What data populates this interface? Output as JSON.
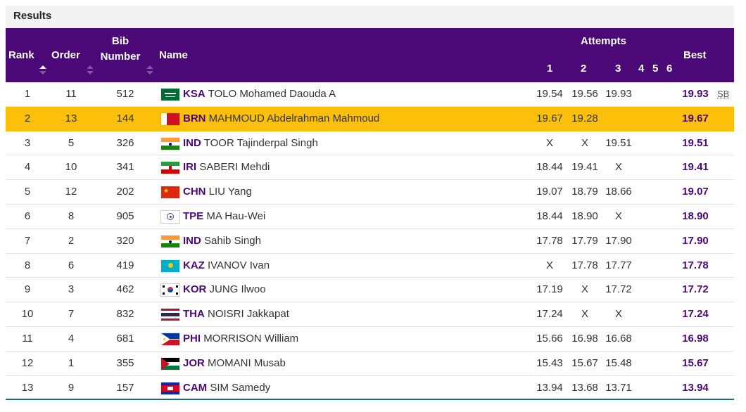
{
  "section_title": "Results",
  "header": {
    "rank": "Rank",
    "order": "Order",
    "bib_line1": "Bib",
    "bib_line2": "Number",
    "name": "Name",
    "attempts": "Attempts",
    "a1": "1",
    "a2": "2",
    "a3": "3",
    "a4": "4",
    "a5": "5",
    "a6": "6",
    "best": "Best"
  },
  "rows": [
    {
      "rank": "1",
      "order": "11",
      "bib": "512",
      "noc": "KSA",
      "name": "TOLO Mohamed Daouda A",
      "a1": "19.54",
      "a2": "19.56",
      "a3": "19.93",
      "best": "19.93",
      "note": "SB",
      "flag": "flag-ksa"
    },
    {
      "rank": "2",
      "order": "13",
      "bib": "144",
      "noc": "BRN",
      "name": "MAHMOUD Abdelrahman Mahmoud",
      "a1": "19.67",
      "a2": "19.28",
      "a3": "",
      "best": "19.67",
      "note": "",
      "flag": "flag-brn"
    },
    {
      "rank": "3",
      "order": "5",
      "bib": "326",
      "noc": "IND",
      "name": "TOOR Tajinderpal Singh",
      "a1": "X",
      "a2": "X",
      "a3": "19.51",
      "best": "19.51",
      "note": "",
      "flag": "flag-ind"
    },
    {
      "rank": "4",
      "order": "10",
      "bib": "341",
      "noc": "IRI",
      "name": "SABERI Mehdi",
      "a1": "18.44",
      "a2": "19.41",
      "a3": "X",
      "best": "19.41",
      "note": "",
      "flag": "flag-iri"
    },
    {
      "rank": "5",
      "order": "12",
      "bib": "202",
      "noc": "CHN",
      "name": "LIU Yang",
      "a1": "19.07",
      "a2": "18.79",
      "a3": "18.66",
      "best": "19.07",
      "note": "",
      "flag": "flag-chn"
    },
    {
      "rank": "6",
      "order": "8",
      "bib": "905",
      "noc": "TPE",
      "name": "MA Hau-Wei",
      "a1": "18.44",
      "a2": "18.90",
      "a3": "X",
      "best": "18.90",
      "note": "",
      "flag": "flag-tpe"
    },
    {
      "rank": "7",
      "order": "2",
      "bib": "320",
      "noc": "IND",
      "name": "Sahib Singh",
      "a1": "17.78",
      "a2": "17.79",
      "a3": "17.90",
      "best": "17.90",
      "note": "",
      "flag": "flag-ind"
    },
    {
      "rank": "8",
      "order": "6",
      "bib": "419",
      "noc": "KAZ",
      "name": "IVANOV Ivan",
      "a1": "X",
      "a2": "17.78",
      "a3": "17.77",
      "best": "17.78",
      "note": "",
      "flag": "flag-kaz"
    },
    {
      "rank": "9",
      "order": "3",
      "bib": "462",
      "noc": "KOR",
      "name": "JUNG Ilwoo",
      "a1": "17.19",
      "a2": "X",
      "a3": "17.72",
      "best": "17.72",
      "note": "",
      "flag": "flag-kor"
    },
    {
      "rank": "10",
      "order": "7",
      "bib": "832",
      "noc": "THA",
      "name": "NOISRI Jakkapat",
      "a1": "17.24",
      "a2": "X",
      "a3": "X",
      "best": "17.24",
      "note": "",
      "flag": "flag-tha"
    },
    {
      "rank": "11",
      "order": "4",
      "bib": "681",
      "noc": "PHI",
      "name": "MORRISON William",
      "a1": "15.66",
      "a2": "16.98",
      "a3": "16.68",
      "best": "16.98",
      "note": "",
      "flag": "flag-phi"
    },
    {
      "rank": "12",
      "order": "1",
      "bib": "355",
      "noc": "JOR",
      "name": "MOMANI Musab",
      "a1": "15.43",
      "a2": "15.67",
      "a3": "15.48",
      "best": "15.67",
      "note": "",
      "flag": "flag-jor"
    },
    {
      "rank": "13",
      "order": "9",
      "bib": "157",
      "noc": "CAM",
      "name": "SIM Samedy",
      "a1": "13.94",
      "a2": "13.68",
      "a3": "13.71",
      "best": "13.94",
      "note": "",
      "flag": "flag-cam"
    }
  ],
  "colors": {
    "header_bg": "#4b0978",
    "highlight_row": "#fcc00a",
    "accent_text": "#4b0978"
  }
}
